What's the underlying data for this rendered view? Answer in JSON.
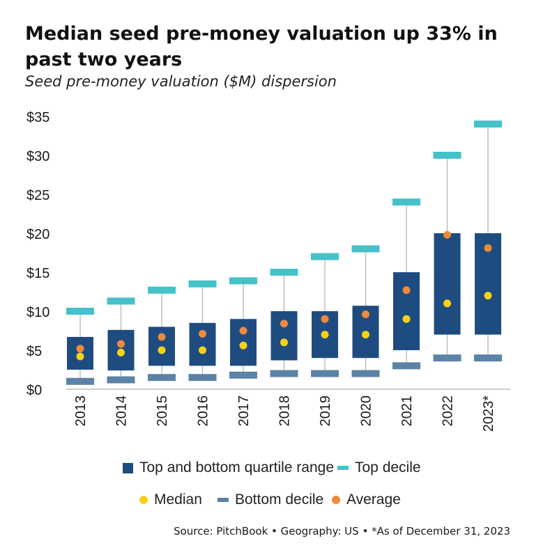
{
  "title": "Median seed pre-money valuation up 33% in past two years",
  "subtitle": "Seed pre-money valuation ($M) dispersion",
  "source": "Source: PitchBook • Geography: US • *As of December 31, 2023",
  "legend": {
    "quartile": "Top and bottom quartile range",
    "top_decile": "Top decile",
    "median": "Median",
    "bottom_decile": "Bottom decile",
    "average": "Average"
  },
  "colors": {
    "box": "#1e4c80",
    "top_decile": "#45c1c9",
    "bottom_decile": "#5c82a6",
    "median": "#f7d117",
    "average": "#ee8a3c",
    "whisker": "#b5b5b5"
  },
  "chart_data": {
    "type": "box",
    "categories": [
      "2013",
      "2014",
      "2015",
      "2016",
      "2017",
      "2018",
      "2019",
      "2020",
      "2021",
      "2022",
      "2023*"
    ],
    "ylim": [
      0,
      35
    ],
    "yticks": [
      0,
      5,
      10,
      15,
      20,
      25,
      30,
      35
    ],
    "ytick_labels": [
      "$0",
      "$5",
      "$10",
      "$15",
      "$20",
      "$25",
      "$30",
      "$35"
    ],
    "series": [
      {
        "name": "Top decile",
        "values": [
          10.0,
          11.3,
          12.7,
          13.5,
          13.9,
          15.0,
          17.0,
          18.0,
          24.0,
          30.0,
          34.0
        ]
      },
      {
        "name": "Top quartile",
        "values": [
          6.7,
          7.6,
          8.0,
          8.5,
          9.0,
          10.0,
          10.0,
          10.7,
          15.0,
          20.0,
          20.0
        ]
      },
      {
        "name": "Bottom quartile",
        "values": [
          2.5,
          2.4,
          3.0,
          3.0,
          3.0,
          3.7,
          4.0,
          4.0,
          5.0,
          7.0,
          7.0
        ]
      },
      {
        "name": "Bottom decile",
        "values": [
          1.0,
          1.2,
          1.5,
          1.5,
          1.8,
          2.0,
          2.0,
          2.0,
          3.0,
          4.0,
          4.0
        ]
      },
      {
        "name": "Median",
        "values": [
          4.2,
          4.7,
          5.0,
          5.0,
          5.6,
          6.0,
          7.0,
          7.0,
          9.0,
          11.0,
          12.0
        ]
      },
      {
        "name": "Average",
        "values": [
          5.2,
          5.8,
          6.7,
          7.1,
          7.5,
          8.4,
          9.0,
          9.6,
          12.7,
          19.8,
          18.1
        ]
      }
    ]
  }
}
